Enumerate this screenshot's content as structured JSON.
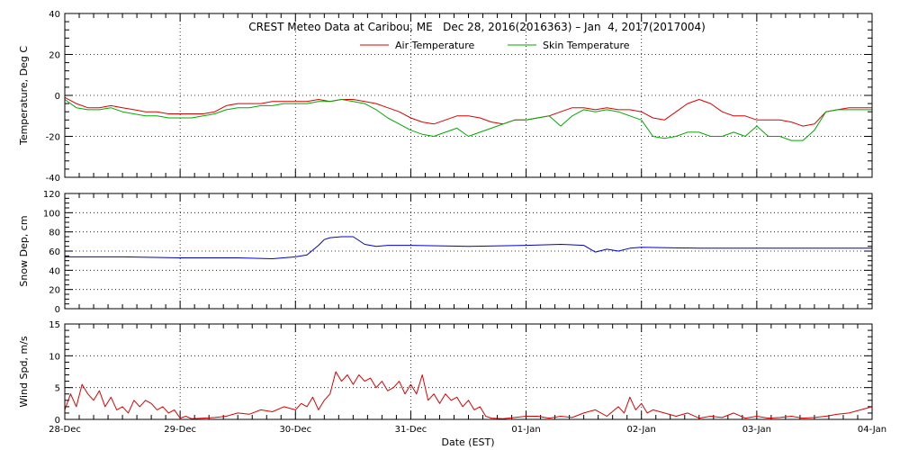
{
  "figure": {
    "title": "CREST Meteo Data at Caribou, ME   Dec 28, 2016(2016363) – Jan  4, 2017(2017004)",
    "xlabel": "Date (EST)",
    "x_tick_labels": [
      "28-Dec",
      "29-Dec",
      "30-Dec",
      "31-Dec",
      "01-Jan",
      "02-Jan",
      "03-Jan",
      "04-Jan"
    ]
  },
  "chart_data": [
    {
      "type": "line",
      "ylabel": "Temperature, Deg C",
      "ylim": [
        -40,
        40
      ],
      "yticks": [
        -40,
        -20,
        0,
        20,
        40
      ],
      "xlim": [
        0,
        7
      ],
      "grid": true,
      "legend": "top-center",
      "series": [
        {
          "name": "Air Temperature",
          "color": "#dd0000",
          "x": [
            0,
            0.1,
            0.2,
            0.3,
            0.4,
            0.5,
            0.6,
            0.7,
            0.8,
            0.9,
            1.0,
            1.1,
            1.2,
            1.3,
            1.4,
            1.5,
            1.6,
            1.7,
            1.8,
            1.9,
            2.0,
            2.1,
            2.2,
            2.3,
            2.4,
            2.5,
            2.6,
            2.7,
            2.8,
            2.9,
            3.0,
            3.1,
            3.2,
            3.3,
            3.4,
            3.5,
            3.6,
            3.7,
            3.8,
            3.9,
            4.0,
            4.1,
            4.2,
            4.3,
            4.4,
            4.5,
            4.6,
            4.7,
            4.8,
            4.9,
            5.0,
            5.1,
            5.2,
            5.3,
            5.4,
            5.5,
            5.6,
            5.7,
            5.8,
            5.9,
            6.0,
            6.1,
            6.2,
            6.3,
            6.4,
            6.5,
            6.6,
            6.7,
            6.8,
            6.9,
            7.0
          ],
          "y": [
            -1,
            -4,
            -6,
            -6,
            -5,
            -6,
            -7,
            -8,
            -8,
            -9,
            -9,
            -9,
            -9,
            -8,
            -5,
            -4,
            -4,
            -4,
            -3,
            -3,
            -3,
            -3,
            -2,
            -3,
            -2,
            -2,
            -3,
            -4,
            -6,
            -8,
            -11,
            -13,
            -14,
            -12,
            -10,
            -10,
            -11,
            -13,
            -14,
            -12,
            -12,
            -11,
            -10,
            -8,
            -6,
            -6,
            -7,
            -6,
            -7,
            -7,
            -8,
            -11,
            -12,
            -8,
            -4,
            -2,
            -4,
            -8,
            -10,
            -10,
            -12,
            -12,
            -12,
            -13,
            -15,
            -14,
            -8,
            -7,
            -6,
            -6,
            -6
          ]
        },
        {
          "name": "Skin Temperature",
          "color": "#00aa00",
          "x": [
            0,
            0.1,
            0.2,
            0.3,
            0.4,
            0.5,
            0.6,
            0.7,
            0.8,
            0.9,
            1.0,
            1.1,
            1.2,
            1.3,
            1.4,
            1.5,
            1.6,
            1.7,
            1.8,
            1.9,
            2.0,
            2.1,
            2.2,
            2.3,
            2.4,
            2.5,
            2.6,
            2.7,
            2.8,
            2.9,
            3.0,
            3.1,
            3.2,
            3.3,
            3.4,
            3.5,
            3.6,
            3.7,
            3.8,
            3.9,
            4.0,
            4.1,
            4.2,
            4.3,
            4.4,
            4.5,
            4.6,
            4.7,
            4.8,
            4.9,
            5.0,
            5.1,
            5.2,
            5.3,
            5.4,
            5.5,
            5.6,
            5.7,
            5.8,
            5.9,
            6.0,
            6.1,
            6.2,
            6.3,
            6.4,
            6.5,
            6.6,
            6.7,
            6.8,
            6.9,
            7.0
          ],
          "y": [
            -2,
            -6,
            -7,
            -7,
            -6,
            -8,
            -9,
            -10,
            -10,
            -11,
            -11,
            -11,
            -10,
            -9,
            -7,
            -6,
            -6,
            -5,
            -5,
            -4,
            -4,
            -4,
            -3,
            -3,
            -2,
            -3,
            -4,
            -7,
            -11,
            -14,
            -17,
            -19,
            -20,
            -18,
            -16,
            -20,
            -18,
            -16,
            -14,
            -12,
            -12,
            -11,
            -10,
            -15,
            -10,
            -7,
            -8,
            -7,
            -8,
            -10,
            -12,
            -20,
            -21,
            -20,
            -18,
            -18,
            -20,
            -20,
            -18,
            -20,
            -15,
            -20,
            -20,
            -22,
            -22,
            -17,
            -8,
            -7,
            -7,
            -7,
            -7
          ]
        }
      ]
    },
    {
      "type": "line",
      "ylabel": "Snow Dep, cm",
      "ylim": [
        0,
        120
      ],
      "yticks": [
        0,
        20,
        40,
        60,
        80,
        100,
        120
      ],
      "xlim": [
        0,
        7
      ],
      "grid": true,
      "series": [
        {
          "color": "#0000cc",
          "x": [
            0,
            0.5,
            1.0,
            1.5,
            1.8,
            2.0,
            2.1,
            2.2,
            2.25,
            2.3,
            2.4,
            2.5,
            2.6,
            2.7,
            2.8,
            2.9,
            3.0,
            3.5,
            4.0,
            4.3,
            4.5,
            4.6,
            4.7,
            4.8,
            4.9,
            5.0,
            5.5,
            6.0,
            6.5,
            7.0
          ],
          "y": [
            54,
            54,
            53,
            53,
            52,
            54,
            56,
            66,
            72,
            74,
            75,
            75,
            67,
            65,
            66,
            66,
            66,
            65,
            66,
            67,
            66,
            59,
            62,
            60,
            63,
            64,
            63,
            63,
            63,
            63
          ]
        }
      ]
    },
    {
      "type": "line",
      "ylabel": "Wind Spd, m/s",
      "ylim": [
        0,
        15
      ],
      "yticks": [
        0,
        5,
        10,
        15
      ],
      "xlim": [
        0,
        7
      ],
      "grid": true,
      "series": [
        {
          "color": "#dd0000",
          "x": [
            0,
            0.05,
            0.1,
            0.15,
            0.2,
            0.25,
            0.3,
            0.35,
            0.4,
            0.45,
            0.5,
            0.55,
            0.6,
            0.65,
            0.7,
            0.75,
            0.8,
            0.85,
            0.9,
            0.95,
            1.0,
            1.05,
            1.1,
            1.2,
            1.3,
            1.4,
            1.5,
            1.6,
            1.7,
            1.8,
            1.9,
            2.0,
            2.05,
            2.1,
            2.15,
            2.2,
            2.25,
            2.3,
            2.35,
            2.4,
            2.45,
            2.5,
            2.55,
            2.6,
            2.65,
            2.7,
            2.75,
            2.8,
            2.85,
            2.9,
            2.95,
            3.0,
            3.05,
            3.1,
            3.15,
            3.2,
            3.25,
            3.3,
            3.35,
            3.4,
            3.45,
            3.5,
            3.55,
            3.6,
            3.65,
            3.7,
            3.8,
            3.9,
            4.0,
            4.1,
            4.2,
            4.3,
            4.4,
            4.5,
            4.6,
            4.7,
            4.8,
            4.85,
            4.9,
            4.95,
            5.0,
            5.05,
            5.1,
            5.2,
            5.3,
            5.4,
            5.5,
            5.6,
            5.7,
            5.8,
            5.9,
            6.0,
            6.1,
            6.2,
            6.3,
            6.4,
            6.5,
            6.6,
            6.7,
            6.8,
            6.9,
            7.0
          ],
          "y": [
            1.5,
            4,
            2,
            5.5,
            4,
            3,
            4.5,
            2,
            3.5,
            1.5,
            2,
            1,
            3,
            2,
            3,
            2.5,
            1.5,
            2,
            1,
            1.5,
            0.2,
            0.5,
            0.1,
            0.2,
            0.3,
            0.5,
            1,
            0.8,
            1.5,
            1.2,
            2,
            1.5,
            2.5,
            2,
            3.5,
            1.5,
            3,
            4,
            7.5,
            6,
            7,
            5.5,
            7,
            6,
            6.5,
            5,
            6,
            4.5,
            5,
            6,
            4,
            5.5,
            4,
            7,
            3,
            4,
            2.5,
            4,
            3,
            3.5,
            2,
            3,
            1.5,
            2,
            0.5,
            0.2,
            0.1,
            0.3,
            0.5,
            0.5,
            0.2,
            0.5,
            0.3,
            1,
            1.5,
            0.5,
            2,
            1,
            3.5,
            1.5,
            2.5,
            1,
            1.5,
            1,
            0.5,
            1,
            0.2,
            0.5,
            0.3,
            1,
            0.2,
            0.5,
            0.2,
            0.3,
            0.5,
            0.2,
            0.3,
            0.5,
            0.8,
            1,
            1.5,
            2
          ]
        }
      ]
    }
  ]
}
